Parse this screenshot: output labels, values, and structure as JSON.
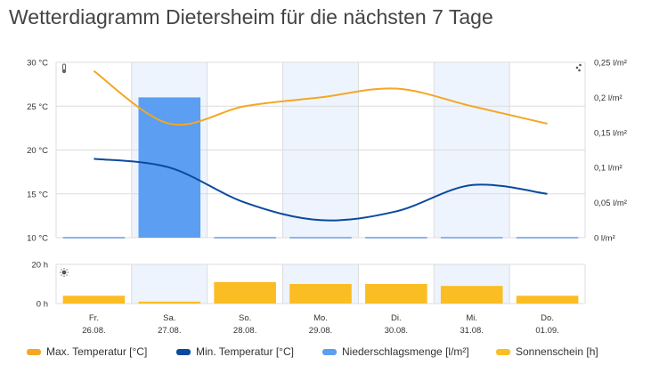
{
  "title": "Wetterdiagramm Dietersheim für die nächsten 7 Tage",
  "icons": {
    "temperature": "thermometer-icon",
    "precipitation": "rain-drops-icon",
    "sunshine": "sun-icon"
  },
  "colors": {
    "max_temp": "#f5a623",
    "min_temp": "#0a4a9f",
    "precip": "#5b9ef2",
    "sunshine": "#fbbd24",
    "shade": "#eef4fd",
    "grid": "#dcdcdc",
    "zero_line": "#8fb5ea"
  },
  "chart_data": [
    {
      "type": "line",
      "title": "",
      "categories": [
        "Fr. 26.08.",
        "Sa. 27.08.",
        "So. 28.08.",
        "Mo. 29.08.",
        "Di. 30.08.",
        "Mi. 31.08.",
        "Do. 01.09."
      ],
      "day_names": [
        "Fr.",
        "Sa.",
        "So.",
        "Mo.",
        "Di.",
        "Mi.",
        "Do."
      ],
      "dates": [
        "26.08.",
        "27.08.",
        "28.08.",
        "29.08.",
        "30.08.",
        "31.08.",
        "01.09."
      ],
      "y_left": {
        "ticks": [
          10,
          15,
          20,
          25,
          30
        ],
        "tick_labels": [
          "10 °C",
          "15 °C",
          "20 °C",
          "25 °C",
          "30 °C"
        ],
        "range": [
          10,
          30
        ]
      },
      "y_right": {
        "ticks": [
          0,
          0.05,
          0.1,
          0.15,
          0.2,
          0.25
        ],
        "tick_labels": [
          "0 l/m²",
          "0,05 l/m²",
          "0,1 l/m²",
          "0,15 l/m²",
          "0,2 l/m²",
          "0,25 l/m²"
        ],
        "range": [
          0,
          0.25
        ]
      },
      "series": [
        {
          "name": "Max. Temperatur [°C]",
          "type": "line",
          "axis": "left",
          "values": [
            29,
            23,
            25,
            26,
            27,
            25,
            23
          ]
        },
        {
          "name": "Min. Temperatur [°C]",
          "type": "line",
          "axis": "left",
          "values": [
            19,
            18,
            14,
            12,
            13,
            16,
            15
          ]
        },
        {
          "name": "Niederschlagsmenge [l/m²]",
          "type": "bar",
          "axis": "right",
          "values": [
            0,
            0.2,
            0,
            0,
            0,
            0,
            0
          ]
        }
      ],
      "grid": true,
      "shaded_days": [
        1,
        3,
        5
      ]
    },
    {
      "type": "bar",
      "title": "",
      "categories": [
        "Fr. 26.08.",
        "Sa. 27.08.",
        "So. 28.08.",
        "Mo. 29.08.",
        "Di. 30.08.",
        "Mi. 31.08.",
        "Do. 01.09."
      ],
      "y_left": {
        "ticks": [
          0,
          20
        ],
        "tick_labels": [
          "0 h",
          "20 h"
        ],
        "range": [
          0,
          20
        ]
      },
      "series": [
        {
          "name": "Sonnenschein [h]",
          "type": "bar",
          "values": [
            4,
            1,
            11,
            10,
            10,
            9,
            4
          ]
        }
      ],
      "grid": true
    }
  ],
  "legend": {
    "placement": "bottom",
    "items": [
      {
        "label": "Max. Temperatur [°C]",
        "color": "#f5a623"
      },
      {
        "label": "Min. Temperatur [°C]",
        "color": "#0a4a9f"
      },
      {
        "label": "Niederschlagsmenge [l/m²]",
        "color": "#5b9ef2"
      },
      {
        "label": "Sonnenschein [h]",
        "color": "#fbbd24"
      }
    ]
  }
}
